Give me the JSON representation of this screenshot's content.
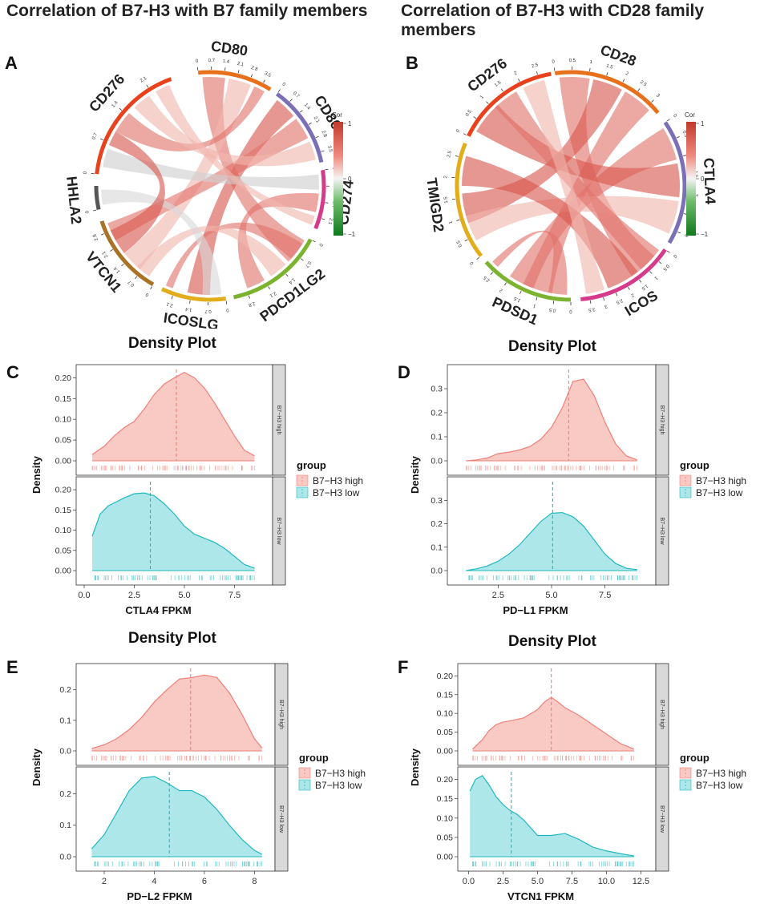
{
  "titles": {
    "left": "Correlation of B7-H3 with  B7 family members",
    "right": "Correlation of B7-H3 with CD28 family members"
  },
  "letters": [
    "A",
    "B",
    "C",
    "D",
    "E",
    "F"
  ],
  "density_title": "Density Plot",
  "colors": {
    "high_fill": "#f9c9c4",
    "high_line": "#f08077",
    "low_fill": "#aee7ea",
    "low_line": "#1fb8bf"
  },
  "chart_data": [
    {
      "type": "chord",
      "panel": "A",
      "sectors": [
        {
          "name": "CD80",
          "color": "#e8701a",
          "ticks": [
            "0",
            "0.7",
            "1.4",
            "2.1",
            "2.8",
            "3.5"
          ]
        },
        {
          "name": "CD86",
          "color": "#7b70b8",
          "ticks": [
            "0",
            "0.7",
            "1.4",
            "2.1",
            "2.8",
            "3.5"
          ]
        },
        {
          "name": "CD274",
          "color": "#d63a8a",
          "ticks": [
            "0",
            "0.7",
            "1.4",
            "2.1"
          ]
        },
        {
          "name": "PDCD1LG2",
          "color": "#7cb32e",
          "ticks": [
            "0",
            "0.7",
            "1.4",
            "2.1",
            "2.8"
          ]
        },
        {
          "name": "ICOSLG",
          "color": "#e3ac1b",
          "ticks": [
            "0",
            "0.7",
            "1.4",
            "2.1"
          ]
        },
        {
          "name": "VTCN1",
          "color": "#a87325",
          "ticks": [
            "0",
            "0.7",
            "1.4",
            "2.1",
            "2.8"
          ]
        },
        {
          "name": "HHLA2",
          "color": "#555555",
          "ticks": [
            "0"
          ]
        },
        {
          "name": "CD276",
          "color": "#e8411c",
          "ticks": [
            "0",
            "0.7",
            "1.4",
            "2.1"
          ]
        }
      ],
      "legend": {
        "title": "Cor",
        "ticks": [
          "1",
          "0",
          "-1"
        ]
      }
    },
    {
      "type": "chord",
      "panel": "B",
      "sectors": [
        {
          "name": "CD28",
          "color": "#e8701a",
          "ticks": [
            "0",
            "0.5",
            "1",
            "1.5",
            "2",
            "2.5",
            "3"
          ]
        },
        {
          "name": "CTLA4",
          "color": "#7b70b8",
          "ticks": [
            "0",
            "0.5",
            "1",
            "1.5",
            "2",
            "2.5",
            "3"
          ]
        },
        {
          "name": "ICOS",
          "color": "#d63a8a",
          "ticks": [
            "0",
            "0.5",
            "1",
            "1.5",
            "2",
            "2.5",
            "3",
            "3.5"
          ]
        },
        {
          "name": "PDSD1",
          "color": "#7cb32e",
          "ticks": [
            "0",
            "0.5",
            "1",
            "1.5",
            "2",
            "2.5"
          ]
        },
        {
          "name": "TMIGD2",
          "color": "#e3ac1b",
          "ticks": [
            "0",
            "0.5",
            "1",
            "1.5",
            "2",
            "2.5"
          ]
        },
        {
          "name": "CD276",
          "color": "#e8411c",
          "ticks": [
            "0",
            "0.5",
            "1",
            "1.5",
            "2",
            "2.5"
          ]
        }
      ],
      "legend": {
        "title": "Cor",
        "ticks": [
          "1",
          "0",
          "-1"
        ]
      }
    },
    {
      "type": "density",
      "panel": "C",
      "xlabel": "CTLA4 FPKM",
      "ylabel": "Density",
      "xlim": [
        0,
        9
      ],
      "xticks": [
        0.0,
        2.5,
        5.0,
        7.5
      ],
      "high": {
        "label": "B7-H3 high",
        "ylim": [
          0,
          0.22
        ],
        "yticks": [
          0.0,
          0.05,
          0.1,
          0.15,
          0.2
        ],
        "mean": 4.6,
        "x": [
          0.4,
          1.0,
          1.5,
          2.0,
          2.5,
          3.0,
          3.5,
          4.0,
          4.5,
          5.0,
          5.5,
          6.0,
          6.5,
          7.0,
          7.5,
          8.0,
          8.5
        ],
        "y": [
          0.015,
          0.035,
          0.06,
          0.08,
          0.095,
          0.125,
          0.16,
          0.185,
          0.2,
          0.213,
          0.2,
          0.175,
          0.14,
          0.1,
          0.06,
          0.025,
          0.012
        ]
      },
      "low": {
        "label": "B7-H3 low",
        "ylim": [
          0,
          0.22
        ],
        "yticks": [
          0.0,
          0.05,
          0.1,
          0.15,
          0.2
        ],
        "mean": 3.3,
        "x": [
          0.4,
          0.8,
          1.2,
          1.6,
          2.0,
          2.5,
          3.0,
          3.5,
          4.0,
          4.5,
          5.0,
          5.5,
          6.0,
          6.5,
          7.0,
          7.5,
          8.0,
          8.5
        ],
        "y": [
          0.085,
          0.14,
          0.16,
          0.17,
          0.18,
          0.19,
          0.192,
          0.185,
          0.165,
          0.14,
          0.11,
          0.09,
          0.08,
          0.07,
          0.055,
          0.035,
          0.015,
          0.006
        ]
      },
      "legend": {
        "title": "group",
        "items": [
          "B7−H3 high",
          "B7−H3 low"
        ]
      },
      "strips": [
        "B7−H3 high",
        "B7−H3 low"
      ],
      "yticklabels": [
        "0.00",
        "0.05",
        "0.10",
        "0.15",
        "0.20"
      ],
      "xticklabels": [
        "0.0",
        "2.5",
        "5.0",
        "7.5"
      ]
    },
    {
      "type": "density",
      "panel": "D",
      "xlabel": "PD−L1 FPKM",
      "ylabel": "Density",
      "xlim": [
        0.5,
        9.5
      ],
      "xticks": [
        2.5,
        5.0,
        7.5
      ],
      "high": {
        "label": "B7-H3 high",
        "ylim": [
          0,
          0.38
        ],
        "yticks": [
          0.0,
          0.1,
          0.2,
          0.3
        ],
        "mean": 5.8,
        "x": [
          1.0,
          1.5,
          2.0,
          2.5,
          3.0,
          3.5,
          4.0,
          4.5,
          5.0,
          5.5,
          6.0,
          6.5,
          7.0,
          7.5,
          8.0,
          8.5,
          9.0
        ],
        "y": [
          0.0,
          0.004,
          0.012,
          0.03,
          0.036,
          0.045,
          0.06,
          0.09,
          0.14,
          0.22,
          0.33,
          0.34,
          0.27,
          0.16,
          0.07,
          0.02,
          0.004
        ]
      },
      "low": {
        "label": "B7-H3 low",
        "ylim": [
          0,
          0.38
        ],
        "yticks": [
          0.0,
          0.1,
          0.2,
          0.3
        ],
        "mean": 5.05,
        "x": [
          1.0,
          1.5,
          2.0,
          2.5,
          3.0,
          3.5,
          4.0,
          4.5,
          5.0,
          5.5,
          6.0,
          6.5,
          7.0,
          7.5,
          8.0,
          8.5,
          9.0
        ],
        "y": [
          0.0,
          0.008,
          0.02,
          0.04,
          0.07,
          0.11,
          0.16,
          0.21,
          0.245,
          0.248,
          0.23,
          0.19,
          0.13,
          0.07,
          0.03,
          0.01,
          0.004
        ]
      },
      "legend": {
        "title": "group",
        "items": [
          "B7−H3 high",
          "B7−H3 low"
        ]
      },
      "strips": [
        "B7−H3 high",
        "B7−H3 low"
      ],
      "yticklabels": [
        "0.0",
        "0.1",
        "0.2",
        "0.3"
      ],
      "xticklabels": [
        "2.5",
        "5.0",
        "7.5"
      ]
    },
    {
      "type": "density",
      "panel": "E",
      "xlabel": "PD−L2 FPKM",
      "ylabel": "Density",
      "xlim": [
        1.2,
        8.5
      ],
      "xticks": [
        2,
        4,
        6,
        8
      ],
      "high": {
        "label": "B7-H3 high",
        "ylim": [
          0,
          0.27
        ],
        "yticks": [
          0.0,
          0.1,
          0.2
        ],
        "mean": 5.45,
        "x": [
          1.5,
          2.0,
          2.5,
          3.0,
          3.5,
          4.0,
          4.5,
          5.0,
          5.5,
          6.0,
          6.5,
          7.0,
          7.5,
          8.0,
          8.3
        ],
        "y": [
          0.008,
          0.02,
          0.04,
          0.07,
          0.11,
          0.16,
          0.2,
          0.235,
          0.24,
          0.248,
          0.24,
          0.19,
          0.12,
          0.04,
          0.01
        ]
      },
      "low": {
        "label": "B7-H3 low",
        "ylim": [
          0,
          0.27
        ],
        "yticks": [
          0.0,
          0.1,
          0.2
        ],
        "mean": 4.6,
        "x": [
          1.5,
          2.0,
          2.5,
          3.0,
          3.5,
          4.0,
          4.5,
          5.0,
          5.5,
          6.0,
          6.5,
          7.0,
          7.5,
          8.0,
          8.3
        ],
        "y": [
          0.025,
          0.07,
          0.14,
          0.21,
          0.25,
          0.255,
          0.235,
          0.21,
          0.21,
          0.19,
          0.15,
          0.1,
          0.055,
          0.02,
          0.008
        ]
      },
      "legend": {
        "title": "group",
        "items": [
          "B7−H3 high",
          "B7−H3 low"
        ]
      },
      "strips": [
        "B7−H3 high",
        "B7−H3 low"
      ],
      "yticklabels": [
        "0.0",
        "0.1",
        "0.2"
      ],
      "xticklabels": [
        "2",
        "4",
        "6",
        "8"
      ]
    },
    {
      "type": "density",
      "panel": "F",
      "xlabel": "VTCN1 FPKM",
      "ylabel": "Density",
      "xlim": [
        -0.2,
        13
      ],
      "xticks": [
        0.0,
        2.5,
        5.0,
        7.5,
        10.0,
        12.5
      ],
      "high": {
        "label": "B7-H3 high",
        "ylim": [
          0,
          0.22
        ],
        "yticks": [
          0.0,
          0.05,
          0.1,
          0.15,
          0.2
        ],
        "mean": 6.0,
        "x": [
          0.3,
          1.0,
          1.5,
          2.0,
          2.5,
          3.0,
          4.0,
          5.0,
          5.5,
          6.0,
          6.5,
          7.0,
          8.0,
          9.0,
          10.0,
          11.0,
          12.0
        ],
        "y": [
          0.005,
          0.03,
          0.055,
          0.07,
          0.077,
          0.08,
          0.088,
          0.11,
          0.13,
          0.143,
          0.13,
          0.115,
          0.095,
          0.07,
          0.045,
          0.02,
          0.005
        ]
      },
      "low": {
        "label": "B7-H3 low",
        "ylim": [
          0,
          0.22
        ],
        "yticks": [
          0.0,
          0.05,
          0.1,
          0.15,
          0.2
        ],
        "mean": 3.1,
        "x": [
          0.1,
          0.5,
          1.0,
          1.5,
          2.0,
          2.5,
          3.0,
          3.5,
          4.0,
          5.0,
          6.0,
          7.0,
          8.0,
          9.0,
          10.0,
          11.0,
          12.0
        ],
        "y": [
          0.17,
          0.2,
          0.21,
          0.185,
          0.155,
          0.135,
          0.12,
          0.11,
          0.095,
          0.055,
          0.055,
          0.06,
          0.045,
          0.025,
          0.015,
          0.008,
          0.002
        ]
      },
      "legend": {
        "title": "group",
        "items": [
          "B7−H3 high",
          "B7−H3 low"
        ]
      },
      "strips": [
        "B7−H3 high",
        "B7−H3 low"
      ],
      "yticklabels": [
        "0.00",
        "0.05",
        "0.10",
        "0.15",
        "0.20"
      ],
      "xticklabels": [
        "0.0",
        "2.5",
        "5.0",
        "7.5",
        "10.0",
        "12.5"
      ]
    }
  ]
}
